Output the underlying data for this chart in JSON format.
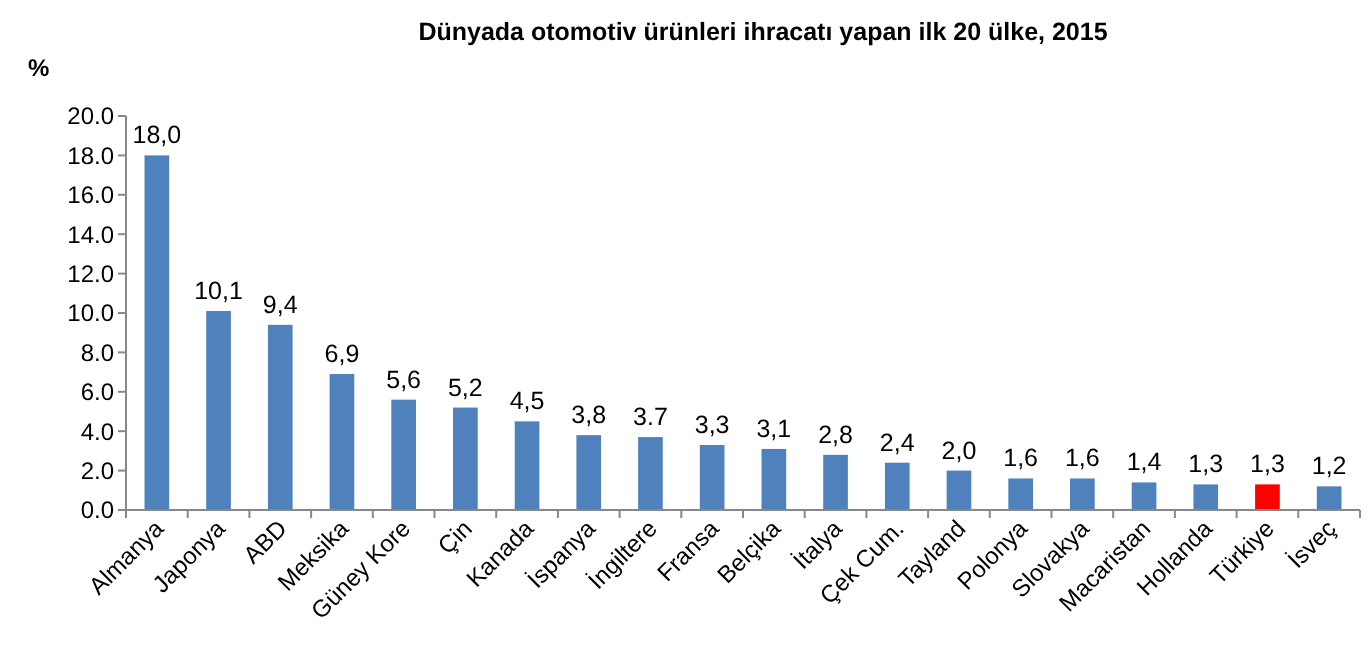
{
  "chart_data": {
    "type": "bar",
    "title": "Dünyada otomotiv ürünleri ihracatı yapan  ilk 20 ülke, 2015",
    "ylabel": "%",
    "categories": [
      "Almanya",
      "Japonya",
      "ABD",
      "Meksika",
      "Güney Kore",
      "Çin",
      "Kanada",
      "İspanya",
      "İngiltere",
      "Fransa",
      "Belçika",
      "İtalya",
      "Çek Cum.",
      "Tayland",
      "Polonya",
      "Slovakya",
      "Macaristan",
      "Hollanda",
      "Türkiye",
      "İsveç"
    ],
    "values": [
      18.0,
      10.1,
      9.4,
      6.9,
      5.6,
      5.2,
      4.5,
      3.8,
      3.7,
      3.3,
      3.1,
      2.8,
      2.4,
      2.0,
      1.6,
      1.6,
      1.4,
      1.3,
      1.3,
      1.2
    ],
    "value_labels": [
      "18,0",
      "10,1",
      "9,4",
      "6,9",
      "5,6",
      "5,2",
      "4,5",
      "3,8",
      "3.7",
      "3,3",
      "3,1",
      "2,8",
      "2,4",
      "2,0",
      "1,6",
      "1,6",
      "1,4",
      "1,3",
      "1,3",
      "1,2"
    ],
    "colors": [
      "#4f81bd",
      "#4f81bd",
      "#4f81bd",
      "#4f81bd",
      "#4f81bd",
      "#4f81bd",
      "#4f81bd",
      "#4f81bd",
      "#4f81bd",
      "#4f81bd",
      "#4f81bd",
      "#4f81bd",
      "#4f81bd",
      "#4f81bd",
      "#4f81bd",
      "#4f81bd",
      "#4f81bd",
      "#4f81bd",
      "#ff0000",
      "#4f81bd"
    ],
    "ylim": [
      0,
      20
    ],
    "yticks": [
      {
        "value": 0,
        "label": "0.0"
      },
      {
        "value": 2,
        "label": "2.0"
      },
      {
        "value": 4,
        "label": "4.0"
      },
      {
        "value": 6,
        "label": "6.0"
      },
      {
        "value": 8,
        "label": "8.0"
      },
      {
        "value": 10,
        "label": "10.0"
      },
      {
        "value": 12,
        "label": "12.0"
      },
      {
        "value": 14,
        "label": "14.0"
      },
      {
        "value": 16,
        "label": "16.0"
      },
      {
        "value": 18,
        "label": "18.0"
      },
      {
        "value": 20,
        "label": "20.0"
      }
    ],
    "grid": false
  }
}
